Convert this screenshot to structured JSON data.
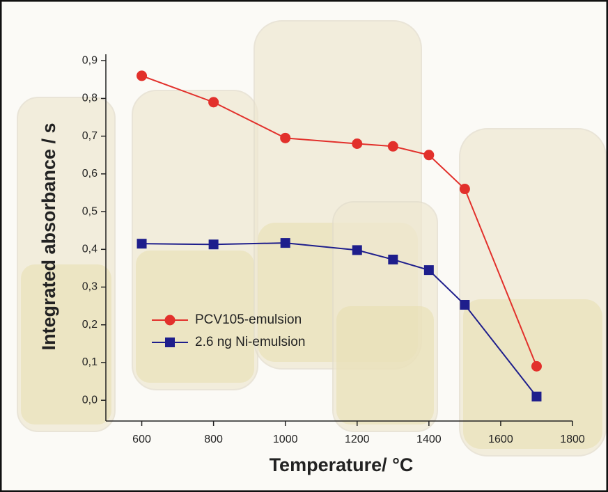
{
  "chart_data": {
    "type": "line",
    "xlabel": "Temperature/ °C",
    "ylabel": "Integrated absorbance / s",
    "x": [
      600,
      800,
      1000,
      1200,
      1300,
      1400,
      1500,
      1700
    ],
    "series": [
      {
        "name": "PCV105-emulsion",
        "color": "#e2302b",
        "marker": "circle",
        "values": [
          0.86,
          0.79,
          0.695,
          0.68,
          0.673,
          0.65,
          0.56,
          0.09
        ]
      },
      {
        "name": "2.6 ng Ni-emulsion",
        "color": "#1e1e8c",
        "marker": "square",
        "values": [
          0.415,
          0.413,
          0.417,
          0.398,
          0.373,
          0.345,
          0.253,
          0.01
        ]
      }
    ],
    "xlim": [
      500,
      1800
    ],
    "xticks": [
      600,
      800,
      1000,
      1200,
      1400,
      1600,
      1800
    ],
    "ylim": [
      -0.055,
      0.917
    ],
    "yticks": [
      {
        "value": 0.0,
        "label": "0,0"
      },
      {
        "value": 0.1,
        "label": "0,1"
      },
      {
        "value": 0.2,
        "label": "0,2"
      },
      {
        "value": 0.3,
        "label": "0,3"
      },
      {
        "value": 0.4,
        "label": "0,4"
      },
      {
        "value": 0.5,
        "label": "0,5"
      },
      {
        "value": 0.6,
        "label": "0,6"
      },
      {
        "value": 0.7,
        "label": "0,7"
      },
      {
        "value": 0.8,
        "label": "0,8"
      },
      {
        "value": 0.9,
        "label": "0,9"
      }
    ],
    "legend": "left"
  }
}
